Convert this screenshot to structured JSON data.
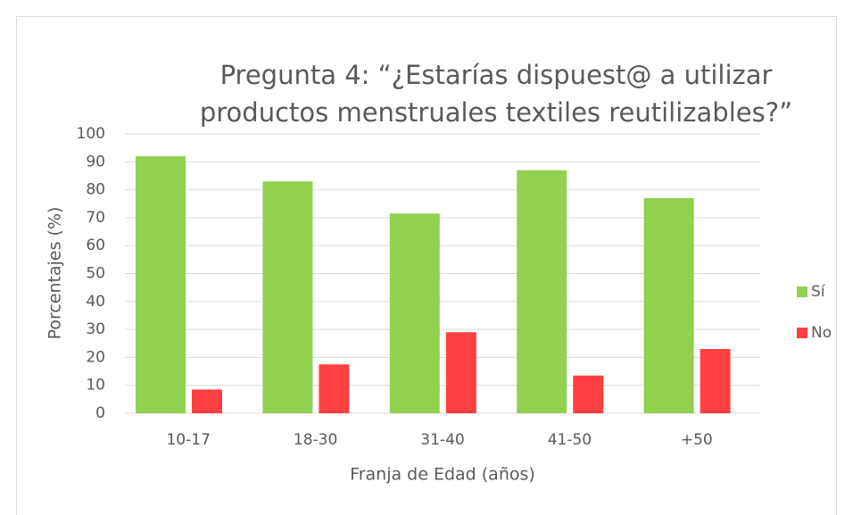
{
  "chart_data": {
    "type": "bar",
    "title": [
      "Pregunta 4: “¿Estarías dispuest@ a utilizar",
      "productos menstruales textiles reutilizables?”"
    ],
    "x_label": "Franja de Edad (años)",
    "y_label": "Porcentajes (%)",
    "categories": [
      "10-17",
      "18-30",
      "31-40",
      "41-50",
      "+50"
    ],
    "series": [
      {
        "name": "Sí",
        "color": "#92d050",
        "values": [
          92,
          83,
          71.5,
          87,
          77
        ]
      },
      {
        "name": "No",
        "color": "#ff4040",
        "values": [
          8.5,
          17.5,
          29,
          13.5,
          23
        ]
      }
    ],
    "ylim": [
      0,
      100
    ],
    "yticks": [
      0,
      10,
      20,
      30,
      40,
      50,
      60,
      70,
      80,
      90,
      100
    ],
    "grid": true,
    "legend": "right"
  }
}
